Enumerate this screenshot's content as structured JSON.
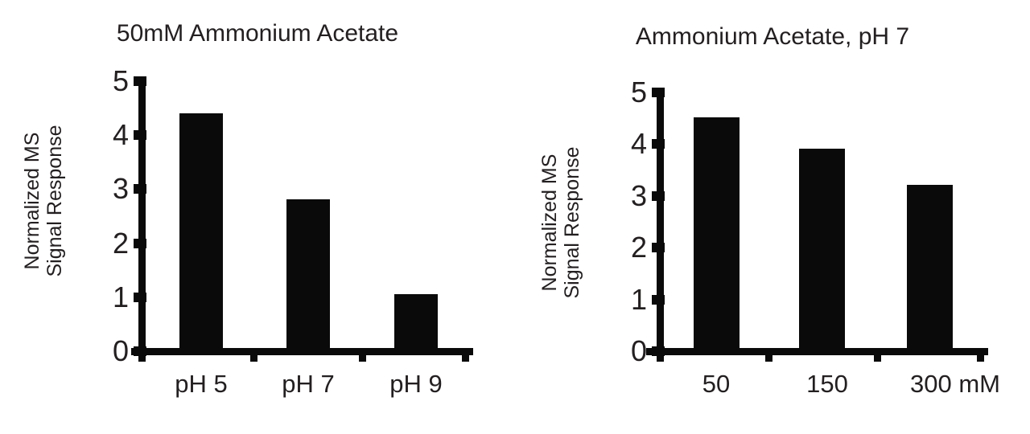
{
  "figure": {
    "background_color": "#ffffff",
    "text_color": "#231f20",
    "bar_color": "#0a0a0a"
  },
  "chart_data": [
    {
      "type": "bar",
      "title": "50mM Ammonium Acetate",
      "ylabel": "Normalized MS\nSignal Response",
      "categories": [
        "pH 5",
        "pH 7",
        "pH 9"
      ],
      "values": [
        4.35,
        2.75,
        1.0
      ],
      "yticks": [
        0,
        1,
        2,
        3,
        4,
        5
      ],
      "ylim": [
        0,
        5
      ],
      "grid": "off",
      "legend": "none"
    },
    {
      "type": "bar",
      "title": "Ammonium Acetate, pH 7",
      "ylabel": "Normalized MS\nSignal Response",
      "categories": [
        "50",
        "150",
        "300 mM"
      ],
      "values": [
        4.45,
        3.85,
        3.15
      ],
      "yticks": [
        0,
        1,
        2,
        3,
        4,
        5
      ],
      "ylim": [
        0,
        5
      ],
      "grid": "off",
      "legend": "none"
    }
  ]
}
